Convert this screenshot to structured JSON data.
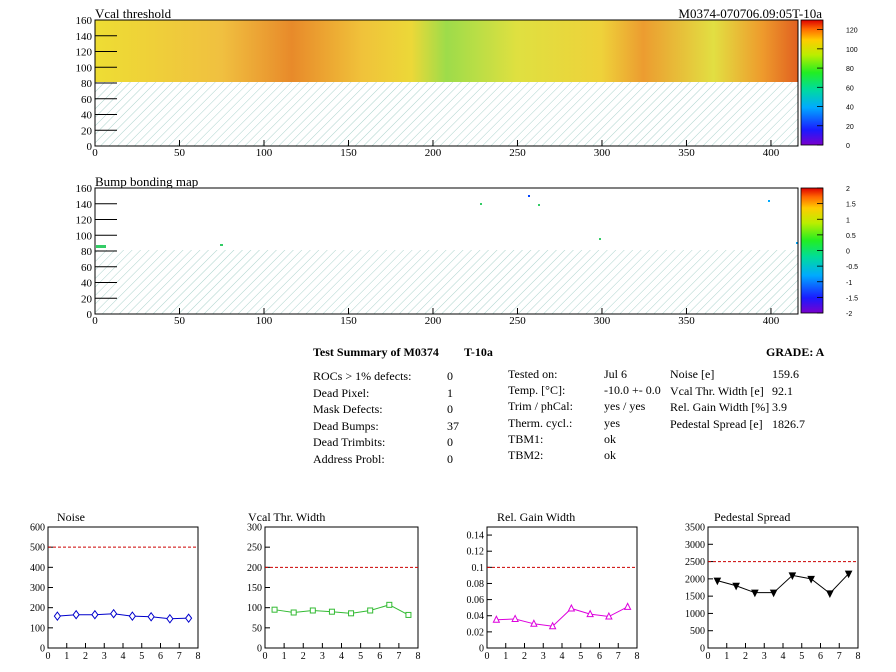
{
  "header": {
    "vcal_title": "Vcal threshold",
    "run_id": "M0374-070706.09:05T-10a",
    "bump_title": "Bump bonding map"
  },
  "maps": {
    "x_ticks": [
      "0",
      "50",
      "100",
      "150",
      "200",
      "250",
      "300",
      "350",
      "400"
    ],
    "y_ticks": [
      "0",
      "20",
      "40",
      "60",
      "80",
      "100",
      "120",
      "140",
      "160"
    ],
    "vcal_scale": [
      "0",
      "20",
      "40",
      "60",
      "80",
      "100",
      "120"
    ],
    "bump_scale": [
      "-2",
      "-1.5",
      "-1",
      "-0.5",
      "0",
      "0.5",
      "1",
      "1.5",
      "2"
    ]
  },
  "summary": {
    "title": "Test Summary of M0374",
    "temp_label": "T-10a",
    "grade": "GRADE:  A",
    "left": [
      {
        "label": "ROCs > 1% defects:",
        "value": "0"
      },
      {
        "label": "Dead Pixel:",
        "value": "1"
      },
      {
        "label": "Mask Defects:",
        "value": "0"
      },
      {
        "label": "Dead Bumps:",
        "value": "37"
      },
      {
        "label": "Dead Trimbits:",
        "value": "0"
      },
      {
        "label": "Address Probl:",
        "value": "0"
      }
    ],
    "middle": [
      {
        "label": "Tested on:",
        "value": "Jul 6"
      },
      {
        "label": "Temp. [°C]:",
        "value": "-10.0 +- 0.0"
      },
      {
        "label": "Trim / phCal:",
        "value": "yes / yes"
      },
      {
        "label": "Therm. cycl.:",
        "value": "yes"
      },
      {
        "label": "TBM1:",
        "value": "ok"
      },
      {
        "label": "TBM2:",
        "value": "ok"
      }
    ],
    "right": [
      {
        "label": "Noise [e]",
        "value": "159.6"
      },
      {
        "label": "Vcal Thr. Width [e]",
        "value": "92.1"
      },
      {
        "label": "Rel. Gain Width [%]",
        "value": "3.9"
      },
      {
        "label": "Pedestal Spread [e]",
        "value": "1826.7"
      }
    ]
  },
  "colors": {
    "noise": "#0000cc",
    "vcal": "#33bb33",
    "gain": "#dd00dd",
    "pedestal": "#000000",
    "limit": "#cc0000"
  },
  "chart_data": [
    {
      "type": "line",
      "title": "Noise",
      "x": [
        0.5,
        1.5,
        2.5,
        3.5,
        4.5,
        5.5,
        6.5,
        7.5
      ],
      "values": [
        158,
        165,
        165,
        170,
        158,
        155,
        145,
        148
      ],
      "ylim": [
        0,
        600
      ],
      "xlim": [
        0,
        8
      ],
      "limit": 500,
      "yticks": [
        "0",
        "100",
        "200",
        "300",
        "400",
        "500",
        "600"
      ],
      "xticks": [
        "0",
        "1",
        "2",
        "3",
        "4",
        "5",
        "6",
        "7",
        "8"
      ],
      "marker": "diamond"
    },
    {
      "type": "line",
      "title": "Vcal Thr. Width",
      "x": [
        0.5,
        1.5,
        2.5,
        3.5,
        4.5,
        5.5,
        6.5,
        7.5
      ],
      "values": [
        95,
        88,
        93,
        90,
        86,
        93,
        107,
        82
      ],
      "ylim": [
        0,
        300
      ],
      "xlim": [
        0,
        8
      ],
      "limit": 200,
      "yticks": [
        "0",
        "50",
        "100",
        "150",
        "200",
        "250",
        "300"
      ],
      "xticks": [
        "0",
        "1",
        "2",
        "3",
        "4",
        "5",
        "6",
        "7",
        "8"
      ],
      "marker": "square"
    },
    {
      "type": "line",
      "title": "Rel. Gain Width",
      "x": [
        0.5,
        1.5,
        2.5,
        3.5,
        4.5,
        5.5,
        6.5,
        7.5
      ],
      "values": [
        0.035,
        0.036,
        0.03,
        0.027,
        0.049,
        0.042,
        0.039,
        0.051
      ],
      "ylim": [
        0,
        0.15
      ],
      "xlim": [
        0,
        8
      ],
      "limit": 0.1,
      "yticks": [
        "0",
        "0.02",
        "0.04",
        "0.06",
        "0.08",
        "0.1",
        "0.12",
        "0.14"
      ],
      "xticks": [
        "0",
        "1",
        "2",
        "3",
        "4",
        "5",
        "6",
        "7",
        "8"
      ],
      "marker": "triangle"
    },
    {
      "type": "line",
      "title": "Pedestal Spread",
      "x": [
        0.5,
        1.5,
        2.5,
        3.5,
        4.5,
        5.5,
        6.5,
        7.5
      ],
      "values": [
        1950,
        1800,
        1600,
        1600,
        2100,
        2000,
        1580,
        2150
      ],
      "ylim": [
        0,
        3500
      ],
      "xlim": [
        0,
        8
      ],
      "limit": 2500,
      "yticks": [
        "0",
        "500",
        "1000",
        "1500",
        "2000",
        "2500",
        "3000",
        "3500"
      ],
      "xticks": [
        "0",
        "1",
        "2",
        "3",
        "4",
        "5",
        "6",
        "7",
        "8"
      ],
      "marker": "invtriangle"
    }
  ]
}
